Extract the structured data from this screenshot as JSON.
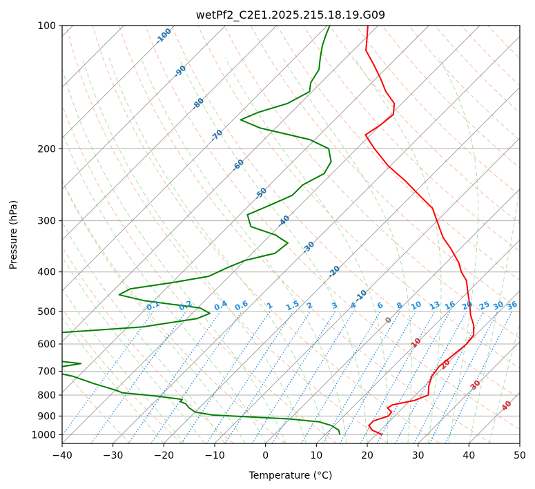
{
  "chart_data": {
    "type": "line",
    "title": "wetPf2_C2E1.2025.215.18.19.G09",
    "xlabel": "Temperature (°C)",
    "ylabel": "Pressure (hPa)",
    "xlim": [
      -40,
      50
    ],
    "ylim": [
      1050,
      100
    ],
    "y_scale": "log",
    "skew": true,
    "grid": true,
    "x_ticks": [
      -40,
      -30,
      -20,
      -10,
      0,
      10,
      20,
      30,
      40,
      50
    ],
    "y_ticks": [
      100,
      200,
      300,
      400,
      500,
      600,
      700,
      800,
      900,
      1000
    ],
    "series": [
      {
        "role": "temperature",
        "color": "#ff0000",
        "points": [
          [
            1000,
            21.3
          ],
          [
            975,
            18.4
          ],
          [
            950,
            16.8
          ],
          [
            925,
            16.8
          ],
          [
            900,
            18.8
          ],
          [
            880,
            18.6
          ],
          [
            860,
            17.0
          ],
          [
            845,
            17.4
          ],
          [
            825,
            20.8
          ],
          [
            800,
            22.5
          ],
          [
            760,
            20.8
          ],
          [
            720,
            19.5
          ],
          [
            680,
            19.0
          ],
          [
            640,
            19.5
          ],
          [
            600,
            20.0
          ],
          [
            570,
            19.6
          ],
          [
            540,
            17.7
          ],
          [
            510,
            15.1
          ],
          [
            480,
            12.8
          ],
          [
            450,
            10.2
          ],
          [
            420,
            7.5
          ],
          [
            400,
            4.8
          ],
          [
            380,
            2.5
          ],
          [
            350,
            -2.0
          ],
          [
            330,
            -5.5
          ],
          [
            310,
            -8.5
          ],
          [
            280,
            -13.3
          ],
          [
            260,
            -18.5
          ],
          [
            240,
            -24.0
          ],
          [
            220,
            -30.5
          ],
          [
            200,
            -36.5
          ],
          [
            185,
            -41.0
          ],
          [
            175,
            -40.0
          ],
          [
            165,
            -39.5
          ],
          [
            155,
            -41.5
          ],
          [
            145,
            -45.5
          ],
          [
            135,
            -49.0
          ],
          [
            125,
            -53.0
          ],
          [
            115,
            -57.5
          ],
          [
            108,
            -59.5
          ],
          [
            100,
            -62.0
          ]
        ]
      },
      {
        "role": "dewpoint",
        "color": "#008000",
        "points": [
          [
            1000,
            12.9
          ],
          [
            975,
            11.8
          ],
          [
            950,
            9.5
          ],
          [
            930,
            6.3
          ],
          [
            915,
            0.0
          ],
          [
            905,
            -8.0
          ],
          [
            895,
            -16.0
          ],
          [
            880,
            -20.0
          ],
          [
            860,
            -22.0
          ],
          [
            840,
            -23.5
          ],
          [
            830,
            -25.0
          ],
          [
            820,
            -25.0
          ],
          [
            805,
            -30.5
          ],
          [
            790,
            -38.0
          ],
          [
            775,
            -40.5
          ],
          [
            750,
            -45.5
          ],
          [
            720,
            -51.0
          ],
          [
            700,
            -56.5
          ],
          [
            685,
            -56.0
          ],
          [
            670,
            -52.0
          ],
          [
            655,
            -60.0
          ],
          [
            640,
            -67.0
          ],
          [
            630,
            -67.5
          ],
          [
            615,
            -60.0
          ],
          [
            600,
            -67.0
          ],
          [
            590,
            -73.0
          ],
          [
            570,
            -68.0
          ],
          [
            545,
            -47.0
          ],
          [
            520,
            -38.0
          ],
          [
            505,
            -36.5
          ],
          [
            490,
            -39.5
          ],
          [
            470,
            -52.0
          ],
          [
            455,
            -58.0
          ],
          [
            440,
            -57.0
          ],
          [
            425,
            -50.0
          ],
          [
            410,
            -44.0
          ],
          [
            390,
            -42.0
          ],
          [
            375,
            -40.0
          ],
          [
            360,
            -35.5
          ],
          [
            340,
            -35.0
          ],
          [
            325,
            -39.0
          ],
          [
            310,
            -45.5
          ],
          [
            290,
            -48.5
          ],
          [
            275,
            -46.0
          ],
          [
            260,
            -43.5
          ],
          [
            245,
            -43.5
          ],
          [
            230,
            -41.5
          ],
          [
            215,
            -42.5
          ],
          [
            200,
            -45.5
          ],
          [
            190,
            -51.0
          ],
          [
            178,
            -63.0
          ],
          [
            170,
            -68.5
          ],
          [
            163,
            -66.5
          ],
          [
            155,
            -62.5
          ],
          [
            145,
            -60.5
          ],
          [
            138,
            -62.0
          ],
          [
            128,
            -63.0
          ],
          [
            120,
            -65.0
          ],
          [
            112,
            -67.0
          ],
          [
            105,
            -68.5
          ],
          [
            100,
            -69.5
          ]
        ]
      }
    ],
    "isotherm_labels": [
      "-100",
      "-90",
      "-80",
      "-70",
      "-60",
      "-50",
      "-40",
      "-30",
      "-20",
      "-10",
      "0",
      "10",
      "20",
      "30",
      "40"
    ],
    "mixing_ratio_labels": [
      "0.1",
      "0.2",
      "0.4",
      "0.6",
      "1",
      "1.5",
      "2",
      "3",
      "4",
      "6",
      "8",
      "10",
      "13",
      "16",
      "20",
      "25",
      "30",
      "36"
    ],
    "colors": {
      "isotherm": "#999999",
      "dry_adiabat": "#f4a582",
      "moist_adiabat": "#a6d9a0",
      "mixing_ratio": "#1f8fe0",
      "cold_label": "#1f6fa8",
      "zero_label": "#777777",
      "warm_label": "#d62728"
    }
  }
}
